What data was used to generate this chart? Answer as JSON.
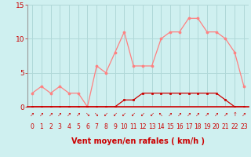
{
  "title": "",
  "xlabel": "Vent moyen/en rafales ( km/h )",
  "background_color": "#cff0f0",
  "grid_color": "#b0d8d8",
  "hours": [
    0,
    1,
    2,
    3,
    4,
    5,
    6,
    7,
    8,
    9,
    10,
    11,
    12,
    13,
    14,
    15,
    16,
    17,
    18,
    19,
    20,
    21,
    22,
    23
  ],
  "vent_moyen": [
    0,
    0,
    0,
    0,
    0,
    0,
    0,
    0,
    0,
    0,
    1,
    1,
    2,
    2,
    2,
    2,
    2,
    2,
    2,
    2,
    2,
    1,
    0,
    0
  ],
  "vent_rafales": [
    2,
    3,
    2,
    3,
    2,
    2,
    0,
    6,
    5,
    8,
    11,
    6,
    6,
    6,
    10,
    11,
    11,
    13,
    13,
    11,
    11,
    10,
    8,
    3
  ],
  "line_color_moyen": "#cc0000",
  "line_color_rafales": "#ff8080",
  "ylim": [
    0,
    15
  ],
  "yticks": [
    0,
    5,
    10,
    15
  ],
  "wind_dir_symbols": [
    "↗",
    "↗",
    "↗",
    "↗",
    "↗",
    "↗",
    "↘",
    "↘",
    "↙",
    "↙",
    "↙",
    "↙",
    "↙",
    "↙",
    "↖",
    "↗",
    "↗",
    "↗",
    "↗",
    "↗",
    "↗",
    "↗",
    "↑",
    "↗"
  ]
}
